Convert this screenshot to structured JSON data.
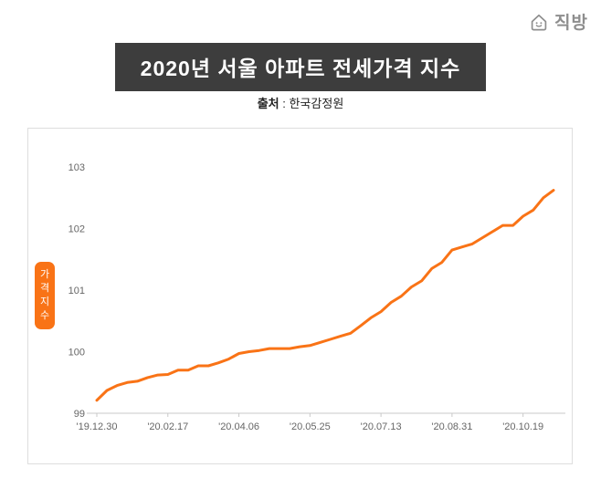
{
  "logo": {
    "text": "직방"
  },
  "title": "2020년 서울 아파트 전세가격 지수",
  "source": {
    "label": "출처",
    "rest": " : 한국감정원"
  },
  "chart_data": {
    "type": "line",
    "title": "2020년 서울 아파트 전세가격 지수",
    "source": "한국감정원",
    "ylabel": "가격지수",
    "xlabel": "",
    "ylim": [
      99,
      103
    ],
    "y_ticks": [
      99,
      100,
      101,
      102,
      103
    ],
    "x_tick_labels": [
      "'19.12.30",
      "'20.02.17",
      "'20.04.06",
      "'20.05.25",
      "'20.07.13",
      "'20.08.31",
      "'20.10.19"
    ],
    "x_tick_indices": [
      0,
      7,
      14,
      21,
      28,
      35,
      42
    ],
    "grid": false,
    "legend": "none",
    "line_color": "#f97316",
    "values": [
      99.21,
      99.37,
      99.45,
      99.5,
      99.52,
      99.58,
      99.62,
      99.63,
      99.7,
      99.7,
      99.77,
      99.77,
      99.82,
      99.88,
      99.97,
      100.0,
      100.02,
      100.05,
      100.05,
      100.05,
      100.08,
      100.1,
      100.15,
      100.2,
      100.25,
      100.3,
      100.42,
      100.55,
      100.65,
      100.8,
      100.9,
      101.05,
      101.15,
      101.35,
      101.45,
      101.65,
      101.7,
      101.75,
      101.85,
      101.95,
      102.05,
      102.05,
      102.2,
      102.3,
      102.5,
      102.62
    ]
  }
}
